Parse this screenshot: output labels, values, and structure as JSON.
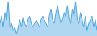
{
  "chart_data": {
    "type": "area",
    "values": [
      3,
      5,
      2,
      6,
      4,
      9,
      2,
      3,
      1,
      2,
      0,
      2,
      4,
      2,
      5,
      3,
      2,
      4,
      5,
      3,
      2,
      3,
      4,
      3,
      2,
      4,
      5,
      4,
      3,
      2,
      5,
      7,
      4,
      3,
      6,
      8,
      5,
      3,
      4,
      6,
      5,
      8,
      4,
      3,
      7,
      5,
      9,
      4,
      3,
      6,
      4,
      2,
      5,
      1,
      3,
      4,
      5,
      2,
      4,
      1
    ],
    "color": "#4da6e0",
    "xlim": [
      0,
      59
    ],
    "ylim": [
      -0.5,
      9.5
    ],
    "tick_labels": false,
    "grid": false
  }
}
